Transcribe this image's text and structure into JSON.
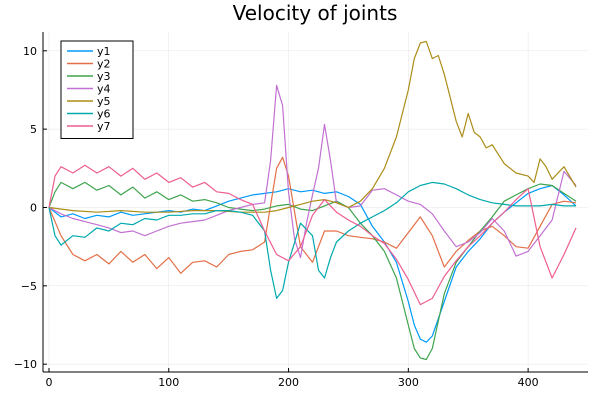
{
  "chart_data": {
    "type": "line",
    "title": "Velocity of joints",
    "xlabel": "",
    "ylabel": "",
    "xlim": [
      -5,
      450
    ],
    "ylim": [
      -10.5,
      11.2
    ],
    "xticks": [
      0,
      100,
      200,
      300,
      400
    ],
    "yticks": [
      -10,
      -5,
      0,
      5,
      10
    ],
    "grid": true,
    "legend_position": "top-left",
    "series": [
      {
        "name": "y1",
        "color": "#009AFA",
        "x": [
          0,
          10,
          20,
          30,
          40,
          50,
          60,
          70,
          80,
          90,
          100,
          110,
          120,
          130,
          140,
          150,
          160,
          170,
          180,
          190,
          200,
          210,
          220,
          230,
          240,
          250,
          260,
          270,
          280,
          290,
          300,
          305,
          310,
          315,
          320,
          330,
          340,
          350,
          360,
          370,
          380,
          390,
          400,
          410,
          420,
          430,
          440
        ],
        "y": [
          0,
          -0.6,
          -0.4,
          -0.7,
          -0.5,
          -0.6,
          -0.3,
          -0.5,
          -0.4,
          -0.3,
          -0.2,
          -0.3,
          -0.1,
          -0.2,
          0.1,
          0.4,
          0.6,
          0.8,
          0.9,
          1.0,
          1.2,
          1.0,
          1.1,
          0.9,
          1.0,
          0.7,
          0.2,
          -1.2,
          -2.2,
          -3.5,
          -6.0,
          -7.5,
          -8.4,
          -8.6,
          -8.2,
          -6.0,
          -3.8,
          -2.8,
          -2.0,
          -1.0,
          -0.3,
          0.3,
          0.9,
          1.2,
          1.4,
          0.8,
          0.1
        ]
      },
      {
        "name": "y2",
        "color": "#E36F47",
        "x": [
          0,
          10,
          20,
          30,
          40,
          50,
          60,
          70,
          80,
          90,
          100,
          110,
          120,
          130,
          140,
          150,
          160,
          170,
          180,
          190,
          195,
          200,
          210,
          220,
          230,
          240,
          250,
          260,
          270,
          280,
          290,
          300,
          310,
          320,
          330,
          340,
          350,
          360,
          370,
          380,
          390,
          400,
          410,
          420,
          430,
          440
        ],
        "y": [
          0,
          -1.8,
          -3.0,
          -3.4,
          -3.0,
          -3.6,
          -2.8,
          -3.5,
          -3.0,
          -3.9,
          -3.2,
          -4.2,
          -3.5,
          -3.4,
          -3.8,
          -3.0,
          -2.8,
          -2.7,
          -2.2,
          2.5,
          3.2,
          2.0,
          -2.5,
          -3.5,
          -1.5,
          -1.5,
          -1.8,
          -1.9,
          -2.0,
          -2.2,
          -2.6,
          -1.6,
          -0.6,
          -1.8,
          -3.8,
          -2.8,
          -2.1,
          -1.5,
          -1.2,
          -1.8,
          -2.5,
          -2.6,
          -1.2,
          0.2,
          0.4,
          0.3
        ]
      },
      {
        "name": "y3",
        "color": "#3EA44E",
        "x": [
          0,
          5,
          10,
          20,
          30,
          40,
          50,
          60,
          70,
          80,
          90,
          100,
          110,
          120,
          130,
          140,
          150,
          160,
          170,
          180,
          190,
          200,
          210,
          220,
          230,
          240,
          250,
          260,
          270,
          280,
          290,
          300,
          305,
          310,
          315,
          320,
          330,
          340,
          350,
          360,
          370,
          380,
          390,
          400,
          410,
          420,
          430,
          440
        ],
        "y": [
          0,
          1.0,
          1.6,
          1.2,
          1.6,
          1.1,
          1.4,
          0.8,
          1.3,
          0.6,
          1.0,
          0.5,
          0.8,
          0.4,
          0.5,
          0.3,
          0.0,
          -0.1,
          -0.2,
          -0.1,
          0.1,
          0.2,
          -0.1,
          -0.2,
          0.1,
          0.4,
          0.0,
          -1.0,
          -1.8,
          -2.8,
          -4.5,
          -7.5,
          -9.0,
          -9.6,
          -9.7,
          -9.0,
          -5.5,
          -3.5,
          -2.5,
          -1.5,
          -0.6,
          0.4,
          0.8,
          1.2,
          1.5,
          1.4,
          0.9,
          0.4
        ]
      },
      {
        "name": "y4",
        "color": "#C271D2",
        "x": [
          0,
          10,
          20,
          30,
          40,
          50,
          60,
          70,
          80,
          90,
          100,
          110,
          120,
          130,
          140,
          150,
          160,
          170,
          180,
          185,
          190,
          195,
          200,
          205,
          210,
          215,
          220,
          225,
          230,
          235,
          240,
          250,
          260,
          270,
          280,
          290,
          300,
          310,
          320,
          330,
          340,
          350,
          360,
          370,
          380,
          390,
          400,
          410,
          420,
          430,
          440
        ],
        "y": [
          0,
          -0.4,
          -0.7,
          -0.9,
          -1.1,
          -1.3,
          -1.6,
          -1.5,
          -1.8,
          -1.5,
          -1.2,
          -1.0,
          -0.9,
          -0.8,
          -0.5,
          -0.2,
          0.0,
          0.2,
          0.3,
          3.0,
          7.8,
          6.5,
          1.0,
          -2.0,
          -3.2,
          -1.0,
          0.8,
          2.5,
          5.3,
          3.0,
          0.3,
          0.0,
          0.1,
          1.1,
          1.2,
          0.8,
          0.4,
          0.2,
          -0.4,
          -1.5,
          -2.5,
          -2.2,
          -1.6,
          -0.7,
          -1.5,
          -3.1,
          -2.8,
          -1.8,
          -0.8,
          2.3,
          1.4
        ]
      },
      {
        "name": "y5",
        "color": "#AC8D18",
        "x": [
          0,
          20,
          40,
          60,
          80,
          100,
          120,
          140,
          160,
          180,
          190,
          200,
          210,
          220,
          230,
          240,
          250,
          260,
          270,
          280,
          290,
          300,
          305,
          310,
          315,
          320,
          325,
          330,
          335,
          340,
          345,
          350,
          355,
          360,
          365,
          370,
          380,
          390,
          400,
          405,
          410,
          415,
          420,
          430,
          440
        ],
        "y": [
          0,
          -0.2,
          -0.3,
          -0.2,
          -0.3,
          -0.3,
          -0.2,
          -0.2,
          -0.3,
          -0.3,
          -0.2,
          0.0,
          0.2,
          0.4,
          0.5,
          0.3,
          0.0,
          0.4,
          1.2,
          2.5,
          4.5,
          7.5,
          9.5,
          10.5,
          10.6,
          9.5,
          9.7,
          8.5,
          7.0,
          5.5,
          4.5,
          6.0,
          4.8,
          4.5,
          3.8,
          4.0,
          2.8,
          2.2,
          2.0,
          1.6,
          3.1,
          2.6,
          1.8,
          2.6,
          1.3
        ]
      },
      {
        "name": "y6",
        "color": "#00A9AD",
        "x": [
          0,
          5,
          10,
          20,
          30,
          40,
          50,
          60,
          70,
          80,
          90,
          100,
          110,
          120,
          130,
          140,
          150,
          160,
          170,
          180,
          185,
          190,
          195,
          200,
          210,
          220,
          225,
          230,
          235,
          240,
          250,
          260,
          270,
          280,
          290,
          300,
          310,
          320,
          330,
          340,
          350,
          360,
          370,
          380,
          390,
          400,
          410,
          420,
          430,
          440
        ],
        "y": [
          0,
          -1.8,
          -2.4,
          -1.8,
          -1.9,
          -1.3,
          -1.5,
          -1.0,
          -1.1,
          -0.7,
          -0.8,
          -0.5,
          -0.5,
          -0.4,
          -0.4,
          -0.2,
          -0.2,
          -0.3,
          -0.5,
          -1.5,
          -4.0,
          -5.8,
          -5.3,
          -3.5,
          -1.0,
          -1.8,
          -4.0,
          -4.5,
          -3.2,
          -2.2,
          -1.5,
          -1.0,
          -0.6,
          -0.2,
          0.3,
          1.0,
          1.4,
          1.6,
          1.5,
          1.2,
          0.8,
          0.5,
          0.3,
          0.2,
          0.1,
          0.1,
          0.1,
          0.2,
          0.1,
          0.1
        ]
      },
      {
        "name": "y7",
        "color": "#ED5D92",
        "x": [
          0,
          5,
          10,
          20,
          30,
          40,
          50,
          60,
          70,
          80,
          90,
          100,
          110,
          120,
          130,
          140,
          150,
          160,
          170,
          180,
          190,
          200,
          210,
          220,
          230,
          240,
          250,
          260,
          270,
          280,
          290,
          300,
          310,
          320,
          330,
          340,
          350,
          360,
          370,
          380,
          390,
          400,
          410,
          420,
          430,
          440
        ],
        "y": [
          0,
          2.0,
          2.6,
          2.2,
          2.7,
          2.2,
          2.6,
          2.0,
          2.5,
          1.8,
          2.2,
          1.6,
          1.9,
          1.3,
          1.6,
          1.0,
          0.9,
          0.5,
          0.2,
          -1.5,
          -3.0,
          -3.4,
          -2.5,
          -0.5,
          0.5,
          -0.3,
          -0.8,
          -1.2,
          -1.8,
          -2.3,
          -3.3,
          -4.6,
          -6.2,
          -5.8,
          -4.4,
          -3.4,
          -2.5,
          -1.8,
          -1.0,
          -0.3,
          0.5,
          1.2,
          -2.5,
          -4.5,
          -3.0,
          -1.3
        ]
      }
    ]
  }
}
